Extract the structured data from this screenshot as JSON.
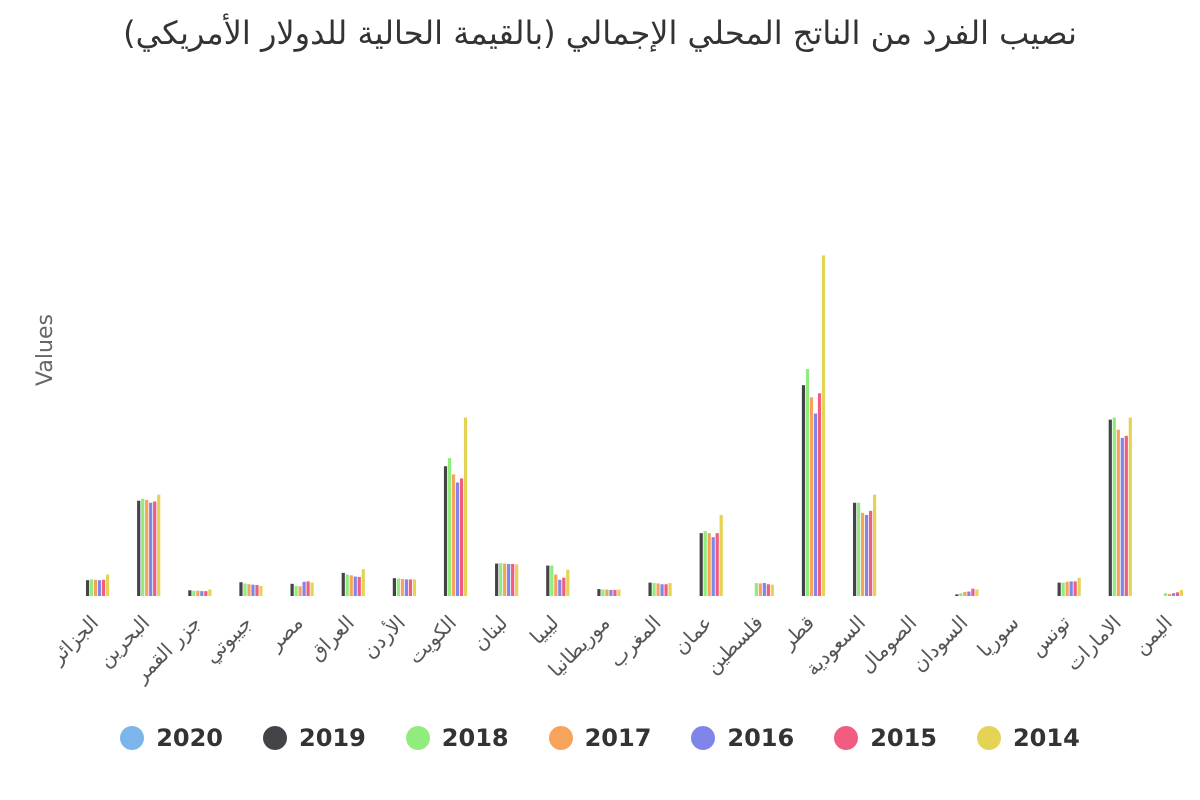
{
  "chart_data": {
    "type": "bar",
    "title": "نصيب الفرد من الناتج المحلي الإجمالي (بالقيمة الحالية للدولار الأمريكي)",
    "xlabel": "",
    "ylabel": "Values",
    "ylim": [
      0,
      110000
    ],
    "grid": false,
    "legend_position": "bottom",
    "categories": [
      "الجزائر",
      "البحرين",
      "جزر القمر",
      "جيبوتي",
      "مصر",
      "العراق",
      "الأردن",
      "الكويت",
      "لبنان",
      "ليبيا",
      "موريطانيا",
      "المغرب",
      "عمان",
      "فلسطين",
      "قطر",
      "السعودية",
      "الصومال",
      "السودان",
      "سوريا",
      "تونس",
      "الامارات",
      "اليمن"
    ],
    "series": [
      {
        "name": "2020",
        "color": "#7cb5ec",
        "values": [
          null,
          null,
          null,
          null,
          null,
          null,
          null,
          null,
          null,
          null,
          null,
          null,
          null,
          null,
          null,
          null,
          null,
          null,
          null,
          null,
          null,
          null
        ]
      },
      {
        "name": "2019",
        "color": "#434348",
        "values": [
          3900,
          23500,
          1400,
          3400,
          3000,
          5700,
          4400,
          32000,
          8000,
          7500,
          1700,
          3300,
          15500,
          null,
          52000,
          23000,
          null,
          400,
          null,
          3300,
          43500,
          null
        ]
      },
      {
        "name": "2018",
        "color": "#90ed7d",
        "values": [
          4100,
          24000,
          1300,
          3100,
          2500,
          5300,
          4300,
          34000,
          8100,
          7500,
          1600,
          3200,
          16000,
          3200,
          56000,
          23000,
          null,
          700,
          null,
          3300,
          44000,
          700
        ]
      },
      {
        "name": "2017",
        "color": "#f7a35c",
        "values": [
          4000,
          23700,
          1300,
          2900,
          2400,
          5100,
          4200,
          30000,
          8000,
          5300,
          1600,
          3100,
          15500,
          3100,
          49000,
          20500,
          null,
          1000,
          null,
          3500,
          41000,
          500
        ]
      },
      {
        "name": "2016",
        "color": "#8085e9",
        "values": [
          3900,
          23000,
          1200,
          2800,
          3500,
          4800,
          4100,
          28000,
          7900,
          4000,
          1500,
          2900,
          14500,
          3200,
          45000,
          20000,
          null,
          1100,
          null,
          3600,
          39000,
          700
        ]
      },
      {
        "name": "2015",
        "color": "#f15c80",
        "values": [
          4000,
          23300,
          1200,
          2700,
          3600,
          4700,
          4100,
          29000,
          7900,
          4500,
          1500,
          2900,
          15500,
          2900,
          50000,
          21000,
          null,
          1800,
          null,
          3600,
          39500,
          900
        ]
      },
      {
        "name": "2014",
        "color": "#e4d354",
        "values": [
          5300,
          25000,
          1600,
          2500,
          3300,
          6600,
          4100,
          44000,
          7800,
          6500,
          1600,
          3200,
          20000,
          2800,
          84000,
          25000,
          null,
          1600,
          null,
          4500,
          44000,
          1500
        ]
      }
    ]
  }
}
